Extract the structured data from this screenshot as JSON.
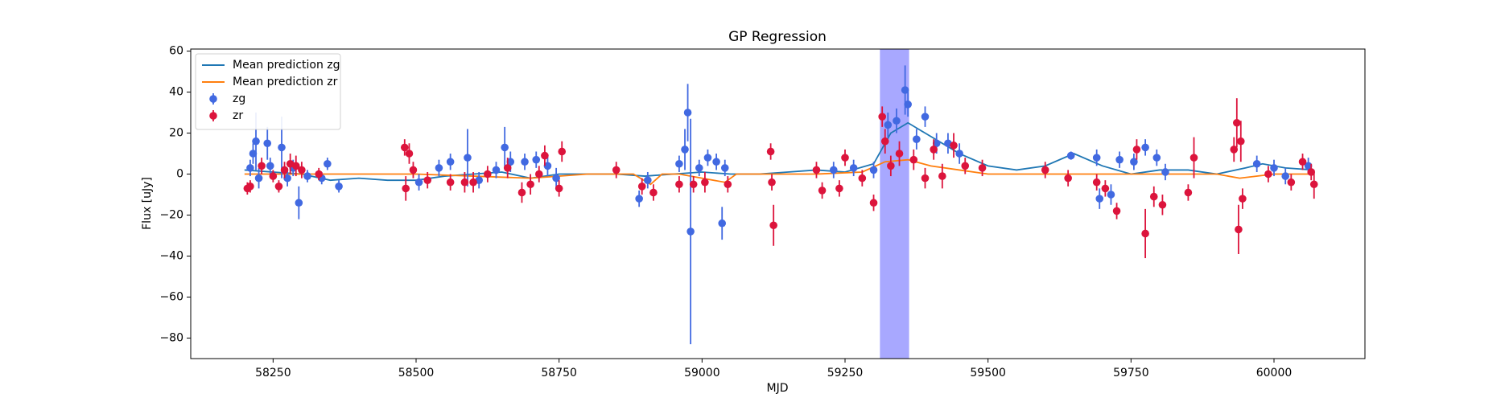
{
  "chart_data": {
    "type": "scatter",
    "title": "GP Regression",
    "x_label": "MJD",
    "y_label": "Flux [uJy]",
    "xlim": [
      58106,
      60159
    ],
    "ylim": [
      -90,
      61
    ],
    "xticks": [
      58250,
      58500,
      58750,
      59000,
      59250,
      59500,
      59750,
      60000
    ],
    "yticks": [
      {
        "value": -80,
        "label": "−80"
      },
      {
        "value": -60,
        "label": "−60"
      },
      {
        "value": -40,
        "label": "−40"
      },
      {
        "value": -20,
        "label": "−20"
      },
      0,
      20,
      40,
      60
    ],
    "legend": "upper left",
    "span": {
      "range": [
        59311,
        59362
      ],
      "color": "#a8a8ff"
    },
    "lines": [
      {
        "name": "Mean prediction zg",
        "color": "#1f77b4",
        "x": [
          58200,
          58250,
          58300,
          58350,
          58400,
          58450,
          58500,
          58550,
          58600,
          58650,
          58700,
          58750,
          58800,
          58850,
          58900,
          58950,
          59000,
          59050,
          59100,
          59150,
          59200,
          59250,
          59300,
          59330,
          59360,
          59390,
          59420,
          59450,
          59500,
          59550,
          59600,
          59650,
          59700,
          59750,
          59800,
          59850,
          59900,
          59950,
          59980,
          60020,
          60070
        ],
        "values": [
          2,
          1,
          0,
          -3,
          -2,
          -3,
          -3,
          -1,
          0,
          1,
          -2,
          0,
          0,
          0,
          -1,
          0,
          1,
          0,
          0,
          1,
          2,
          1,
          5,
          20,
          25,
          20,
          15,
          10,
          4,
          2,
          4,
          10,
          4,
          0,
          2,
          2,
          0,
          3,
          5,
          3,
          2
        ]
      },
      {
        "name": "Mean prediction zr",
        "color": "#ff7f0e",
        "x": [
          58200,
          58300,
          58400,
          58500,
          58600,
          58700,
          58800,
          58880,
          58910,
          58930,
          58960,
          59000,
          59040,
          59060,
          59100,
          59200,
          59280,
          59320,
          59360,
          59400,
          59450,
          59500,
          59600,
          59700,
          59800,
          59900,
          59940,
          60000,
          60070
        ],
        "values": [
          0,
          0,
          0,
          0,
          -1,
          -2,
          0,
          0,
          -5,
          0,
          0,
          -2,
          -4,
          0,
          0,
          0,
          1,
          6,
          7,
          4,
          2,
          0,
          0,
          0,
          0,
          0,
          -2,
          0,
          0
        ]
      }
    ],
    "series": [
      {
        "name": "zg",
        "color": "#4169e1",
        "x": [
          58210,
          58215,
          58220,
          58225,
          58240,
          58245,
          58265,
          58275,
          58285,
          58295,
          58310,
          58335,
          58345,
          58365,
          58505,
          58540,
          58560,
          58590,
          58610,
          58640,
          58655,
          58665,
          58690,
          58710,
          58730,
          58745,
          58890,
          58905,
          58960,
          58970,
          58975,
          58980,
          58995,
          59010,
          59025,
          59035,
          59040,
          59230,
          59265,
          59300,
          59325,
          59340,
          59355,
          59360,
          59375,
          59390,
          59410,
          59430,
          59450,
          59645,
          59690,
          59695,
          59715,
          59730,
          59755,
          59775,
          59795,
          59810,
          59970,
          60000,
          60020,
          60060
        ],
        "values": [
          3,
          10,
          16,
          -2,
          15,
          4,
          13,
          -2,
          3,
          -14,
          -1,
          -2,
          5,
          -6,
          -4,
          3,
          6,
          8,
          -3,
          2,
          13,
          6,
          6,
          7,
          4,
          -2,
          -12,
          -3,
          5,
          12,
          30,
          -28,
          3,
          8,
          6,
          -24,
          3,
          2,
          3,
          2,
          24,
          26,
          41,
          34,
          17,
          28,
          15,
          15,
          10,
          9,
          8,
          -12,
          -10,
          7,
          6,
          13,
          8,
          1,
          5,
          3,
          -1,
          4
        ],
        "errors": [
          4,
          5,
          14,
          5,
          8,
          4,
          15,
          4,
          4,
          8,
          3,
          3,
          3,
          3,
          4,
          4,
          4,
          14,
          4,
          4,
          10,
          5,
          4,
          4,
          5,
          5,
          4,
          4,
          4,
          10,
          14,
          55,
          4,
          4,
          4,
          8,
          4,
          4,
          4,
          4,
          6,
          6,
          12,
          6,
          5,
          5,
          5,
          5,
          5,
          2,
          4,
          5,
          5,
          4,
          4,
          4,
          4,
          4,
          4,
          4,
          4,
          4
        ]
      },
      {
        "name": "zr",
        "color": "#dc143c",
        "x": [
          58205,
          58210,
          58230,
          58250,
          58260,
          58270,
          58280,
          58290,
          58300,
          58330,
          58480,
          58482,
          58488,
          58495,
          58520,
          58560,
          58585,
          58600,
          58625,
          58660,
          58685,
          58700,
          58715,
          58725,
          58750,
          58755,
          58850,
          58895,
          58915,
          58960,
          58985,
          59005,
          59045,
          59120,
          59122,
          59125,
          59200,
          59210,
          59240,
          59250,
          59280,
          59300,
          59315,
          59320,
          59330,
          59345,
          59370,
          59390,
          59405,
          59420,
          59440,
          59460,
          59490,
          59600,
          59640,
          59690,
          59705,
          59725,
          59760,
          59775,
          59790,
          59805,
          59850,
          59860,
          59930,
          59935,
          59938,
          59942,
          59945,
          59990,
          60030,
          60050,
          60065,
          60070
        ],
        "values": [
          -7,
          -6,
          4,
          -1,
          -6,
          2,
          5,
          4,
          2,
          0,
          13,
          -7,
          10,
          2,
          -3,
          -4,
          -4,
          -4,
          0,
          3,
          -9,
          -5,
          0,
          9,
          -7,
          11,
          2,
          -6,
          -9,
          -5,
          -5,
          -4,
          -5,
          11,
          -4,
          -25,
          2,
          -8,
          -7,
          8,
          -2,
          -14,
          28,
          16,
          4,
          10,
          7,
          -2,
          12,
          -1,
          14,
          4,
          3,
          2,
          -2,
          -4,
          -7,
          -18,
          12,
          -29,
          -11,
          -15,
          -9,
          8,
          12,
          25,
          -27,
          16,
          -12,
          0,
          -4,
          6,
          1,
          -5
        ],
        "errors": [
          3,
          3,
          4,
          3,
          3,
          4,
          5,
          5,
          4,
          3,
          4,
          6,
          5,
          4,
          4,
          4,
          5,
          5,
          4,
          5,
          5,
          5,
          4,
          5,
          4,
          5,
          4,
          4,
          4,
          4,
          4,
          5,
          4,
          4,
          4,
          10,
          4,
          4,
          4,
          4,
          4,
          4,
          5,
          6,
          5,
          6,
          5,
          5,
          5,
          6,
          6,
          4,
          4,
          4,
          4,
          4,
          4,
          4,
          5,
          12,
          5,
          5,
          4,
          10,
          6,
          12,
          12,
          10,
          5,
          4,
          4,
          4,
          4,
          7
        ]
      }
    ]
  }
}
